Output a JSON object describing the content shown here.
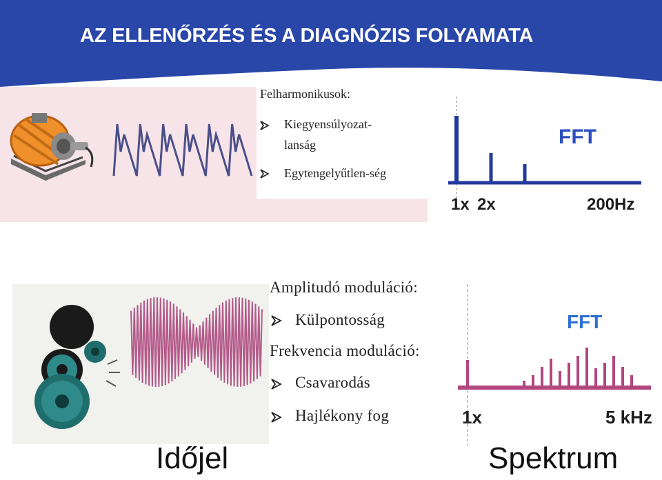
{
  "header": {
    "title": "AZ ELLENŐRZÉS ÉS A DIAGNÓZIS FOLYAMATA"
  },
  "top": {
    "heading": "Felharmonikusok:",
    "bullets": [
      "Kiegyensúlyozat-",
      "lanság",
      "Egytengelyűtlen-ség"
    ],
    "spectrum": {
      "fft_label": "FFT",
      "ticks": [
        "1x",
        "2x",
        "200Hz"
      ]
    }
  },
  "bottom": {
    "heading1": "Amplitudó moduláció:",
    "item1": "Külpontosság",
    "heading2": "Frekvencia moduláció:",
    "item2": "Csavarodás",
    "item3": "Hajlékony fog",
    "spectrum": {
      "fft_label": "FFT",
      "ticks": [
        "1x",
        "5 kHz"
      ]
    }
  },
  "captions": {
    "time": "Időjel",
    "spectrum": "Spektrum"
  },
  "colors": {
    "banner": "#2947a8",
    "top_panel_bg": "#f6e4e9",
    "top_spectrum_line": "#223a9c",
    "bottom_wave": "#b45a8a",
    "bottom_spectrum_line": "#b2467e",
    "fft_top": "#2a4fc0",
    "fft_bottom": "#2f6fd0"
  },
  "icons": [
    "motor-icon",
    "gears-icon",
    "arrow-bullet-icon"
  ]
}
